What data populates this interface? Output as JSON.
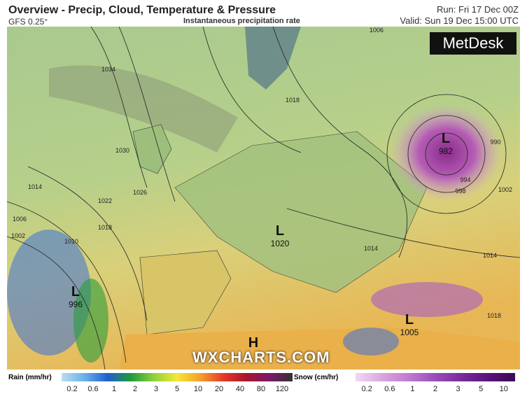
{
  "header": {
    "title": "Overview - Precip, Cloud, Temperature & Pressure",
    "model": "GFS 0.25°",
    "subtitle": "Instantaneous precipitation rate",
    "run": "Run: Fri 17 Dec 00Z",
    "valid": "Valid: Sun 19 Dec 15:00 UTC"
  },
  "logo": "MetDesk",
  "watermark": "WXCHARTS.COM",
  "centers": [
    {
      "symbol": "L",
      "value": 982
    },
    {
      "symbol": "L",
      "value": 1020
    },
    {
      "symbol": "L",
      "value": 996
    },
    {
      "symbol": "L",
      "value": 1005
    },
    {
      "symbol": "H"
    }
  ],
  "isobar_labels": [
    1006,
    1034,
    1030,
    1026,
    1022,
    1018,
    1014,
    1010,
    1006,
    1002,
    1018,
    990,
    994,
    998,
    1002,
    1014,
    1014,
    1018
  ],
  "legends": {
    "rain": {
      "label": "Rain (mm/hr)",
      "ticks": [
        0.2,
        0.6,
        1,
        2,
        3,
        5,
        10,
        20,
        40,
        80,
        120
      ]
    },
    "snow": {
      "label": "Snow (cm/hr)",
      "ticks": [
        0.2,
        0.6,
        1,
        2,
        3,
        5,
        10
      ]
    }
  }
}
